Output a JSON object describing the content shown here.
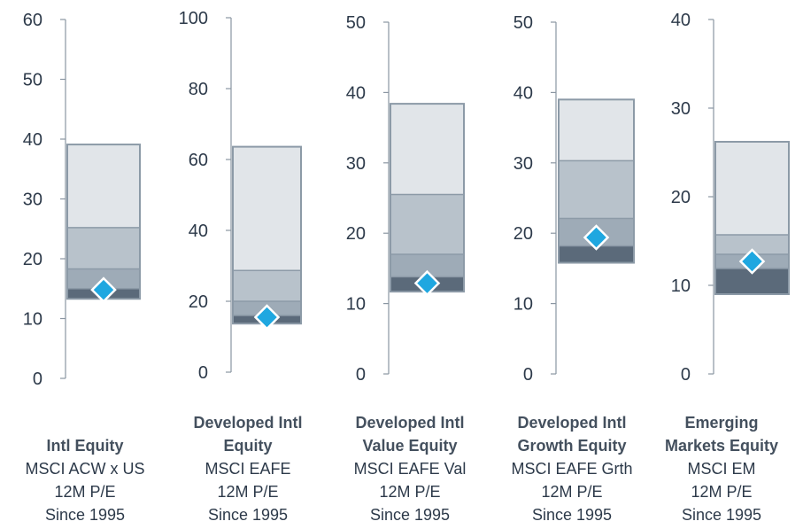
{
  "colors": {
    "band_top": "#e1e5e9",
    "band_upper_mid": "#b8c2cb",
    "band_lower_mid": "#9eabb7",
    "band_bottom": "#5b6a7a",
    "band_edge": "#8c9aa7",
    "marker": "#1fa7e0",
    "axis": "#8a96a2",
    "tick_label": "#2d3a4a"
  },
  "chart_data": [
    {
      "type": "range-band",
      "ylim": [
        0,
        60
      ],
      "yticks": [
        "0",
        "10",
        "20",
        "30",
        "40",
        "50",
        "60"
      ],
      "bands": {
        "min": 13.3,
        "q1": 15.0,
        "median": 18.3,
        "q3": 25.2,
        "max": 39.1
      },
      "current": 14.8,
      "caption": {
        "title_lines": [
          "Intl Equity"
        ],
        "sub_lines": [
          "MSCI ACW x US",
          "12M P/E",
          "Since 1995"
        ]
      }
    },
    {
      "type": "range-band",
      "ylim": [
        0,
        100
      ],
      "yticks": [
        "0",
        "20",
        "40",
        "60",
        "80",
        "100"
      ],
      "bands": {
        "min": 13.7,
        "q1": 16.0,
        "median": 20.0,
        "q3": 28.7,
        "max": 63.6
      },
      "current": 15.5,
      "caption": {
        "title_lines": [
          "Developed Intl",
          "Equity"
        ],
        "sub_lines": [
          "MSCI EAFE",
          "12M P/E",
          "Since 1995"
        ]
      }
    },
    {
      "type": "range-band",
      "ylim": [
        0,
        50
      ],
      "yticks": [
        "0",
        "10",
        "20",
        "30",
        "40",
        "50"
      ],
      "bands": {
        "min": 11.7,
        "q1": 13.8,
        "median": 17.0,
        "q3": 25.5,
        "max": 38.4
      },
      "current": 12.9,
      "caption": {
        "title_lines": [
          "Developed Intl",
          "Value Equity"
        ],
        "sub_lines": [
          "MSCI EAFE Val",
          "12M P/E",
          "Since 1995"
        ]
      }
    },
    {
      "type": "range-band",
      "ylim": [
        0,
        50
      ],
      "yticks": [
        "0",
        "10",
        "20",
        "30",
        "40",
        "50"
      ],
      "bands": {
        "min": 15.8,
        "q1": 18.2,
        "median": 22.1,
        "q3": 30.3,
        "max": 39.0
      },
      "current": 19.4,
      "caption": {
        "title_lines": [
          "Developed Intl",
          "Growth Equity"
        ],
        "sub_lines": [
          "MSCI EAFE Grth",
          "12M P/E",
          "Since 1995"
        ]
      }
    },
    {
      "type": "range-band",
      "ylim": [
        0,
        40
      ],
      "yticks": [
        "0",
        "10",
        "20",
        "30",
        "40"
      ],
      "bands": {
        "min": 9.0,
        "q1": 11.9,
        "median": 13.5,
        "q3": 15.7,
        "max": 26.2
      },
      "current": 12.7,
      "caption": {
        "title_lines": [
          "Emerging",
          "Markets Equity"
        ],
        "sub_lines": [
          "MSCI EM",
          "12M P/E",
          "Since 1995"
        ]
      }
    }
  ]
}
